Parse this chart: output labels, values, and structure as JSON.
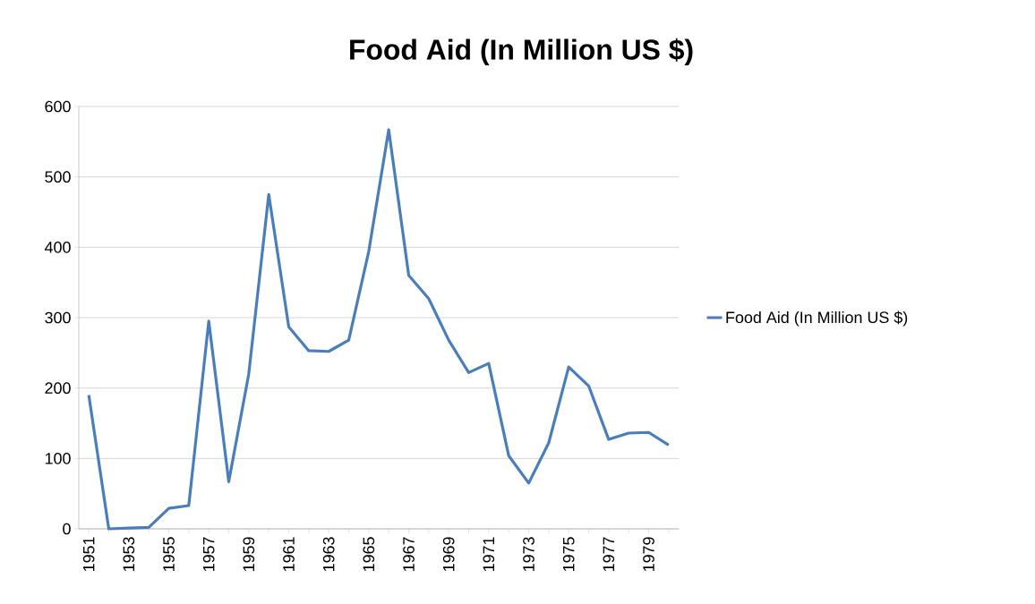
{
  "chart_data": {
    "type": "line",
    "title": "Food Aid (In Million US $)",
    "categories": [
      "1951",
      null,
      "1953",
      null,
      "1955",
      null,
      "1957",
      null,
      "1959",
      null,
      "1961",
      null,
      "1963",
      null,
      "1965",
      null,
      "1967",
      null,
      "1969",
      null,
      "1971",
      null,
      "1973",
      null,
      "1975",
      null,
      "1977",
      null,
      "1979",
      null
    ],
    "series": [
      {
        "name": "Food Aid (In Million US $)",
        "color": "#4a7ebb",
        "values": [
          190,
          0,
          1,
          2,
          29,
          33,
          295,
          67,
          220,
          475,
          287,
          253,
          252,
          268,
          394,
          567,
          360,
          327,
          268,
          222,
          235,
          104,
          65,
          122,
          230,
          203,
          127,
          136,
          137,
          119
        ]
      }
    ],
    "ylim": [
      0,
      600
    ],
    "yticks": [
      0,
      100,
      200,
      300,
      400,
      500,
      600
    ],
    "grid": "y",
    "legend": "right",
    "marker": "none",
    "line_style": "solid"
  }
}
